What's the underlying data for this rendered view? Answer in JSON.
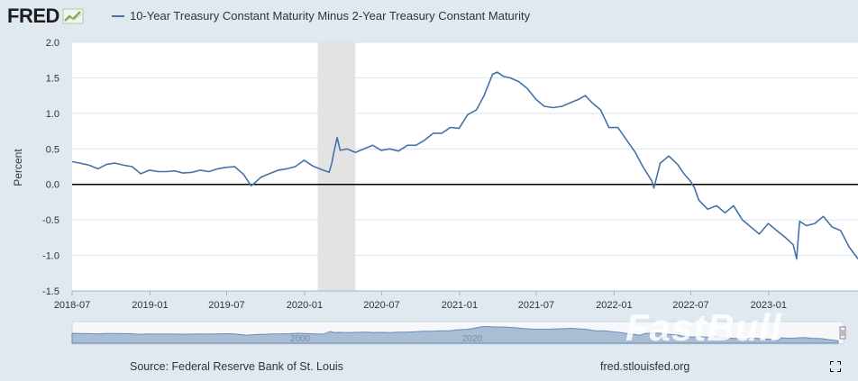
{
  "brand": {
    "name": "FRED",
    "icon": "fred-trend-icon"
  },
  "legend": {
    "label": "10-Year Treasury Constant Maturity Minus 2-Year Treasury Constant Maturity"
  },
  "footer": {
    "source": "Source: Federal Reserve Bank of St. Louis",
    "url": "fred.stlouisfed.org"
  },
  "watermark": "FastBull",
  "navigator": {
    "labels": [
      "2000",
      "2020"
    ]
  },
  "colors": {
    "series": "#4572a7",
    "recession": "#e3e3e3",
    "background": "#e1e9f0",
    "plot": "#ffffff",
    "navigator_fill": "#a9bdd4",
    "zero_line": "#000000"
  },
  "chart_data": {
    "type": "line",
    "ylabel": "Percent",
    "xlabel": "",
    "ylim": [
      -1.5,
      2.0
    ],
    "yticks": [
      "2.0",
      "1.5",
      "1.0",
      "0.5",
      "0.0",
      "-0.5",
      "-1.0",
      "-1.5"
    ],
    "xticks": [
      "2018-07",
      "2019-01",
      "2019-07",
      "2020-01",
      "2020-07",
      "2021-01",
      "2021-07",
      "2022-01",
      "2022-07",
      "2023-01"
    ],
    "xrange": [
      "2018-07-01",
      "2023-07-31"
    ],
    "grid": "horizontal",
    "recession": {
      "start": "2020-02-01",
      "end": "2020-04-30"
    },
    "series": [
      {
        "name": "10-Year Treasury Constant Maturity Minus 2-Year Treasury Constant Maturity",
        "x": [
          "2018-07-01",
          "2018-07-20",
          "2018-08-10",
          "2018-08-31",
          "2018-09-20",
          "2018-10-10",
          "2018-10-31",
          "2018-11-20",
          "2018-12-10",
          "2018-12-31",
          "2019-01-20",
          "2019-02-10",
          "2019-02-28",
          "2019-03-20",
          "2019-04-10",
          "2019-04-30",
          "2019-05-20",
          "2019-06-10",
          "2019-06-30",
          "2019-07-20",
          "2019-08-10",
          "2019-08-20",
          "2019-08-28",
          "2019-09-05",
          "2019-09-20",
          "2019-10-10",
          "2019-10-31",
          "2019-11-20",
          "2019-12-10",
          "2019-12-31",
          "2020-01-20",
          "2020-02-10",
          "2020-02-28",
          "2020-03-05",
          "2020-03-10",
          "2020-03-18",
          "2020-03-25",
          "2020-04-10",
          "2020-04-30",
          "2020-05-20",
          "2020-06-10",
          "2020-06-30",
          "2020-07-20",
          "2020-08-10",
          "2020-08-31",
          "2020-09-20",
          "2020-10-10",
          "2020-10-31",
          "2020-11-20",
          "2020-12-10",
          "2020-12-31",
          "2021-01-20",
          "2021-02-10",
          "2021-02-28",
          "2021-03-10",
          "2021-03-20",
          "2021-03-31",
          "2021-04-15",
          "2021-04-30",
          "2021-05-20",
          "2021-06-10",
          "2021-06-30",
          "2021-07-20",
          "2021-08-10",
          "2021-08-31",
          "2021-09-20",
          "2021-10-10",
          "2021-10-25",
          "2021-11-10",
          "2021-11-30",
          "2021-12-20",
          "2022-01-10",
          "2022-01-31",
          "2022-02-20",
          "2022-03-10",
          "2022-03-31",
          "2022-04-05",
          "2022-04-20",
          "2022-05-10",
          "2022-05-31",
          "2022-06-15",
          "2022-06-30",
          "2022-07-10",
          "2022-07-20",
          "2022-08-10",
          "2022-08-31",
          "2022-09-20",
          "2022-10-10",
          "2022-10-31",
          "2022-11-20",
          "2022-12-10",
          "2022-12-31",
          "2023-01-20",
          "2023-02-10",
          "2023-02-28",
          "2023-03-08",
          "2023-03-15",
          "2023-03-31",
          "2023-04-20",
          "2023-05-10",
          "2023-05-31",
          "2023-06-20",
          "2023-07-10",
          "2023-07-31"
        ],
        "y": [
          0.32,
          0.3,
          0.27,
          0.22,
          0.28,
          0.3,
          0.27,
          0.25,
          0.15,
          0.2,
          0.18,
          0.18,
          0.19,
          0.16,
          0.17,
          0.2,
          0.18,
          0.22,
          0.24,
          0.25,
          0.14,
          0.05,
          -0.02,
          0.02,
          0.1,
          0.15,
          0.2,
          0.22,
          0.25,
          0.34,
          0.26,
          0.21,
          0.17,
          0.29,
          0.45,
          0.66,
          0.48,
          0.5,
          0.45,
          0.5,
          0.55,
          0.48,
          0.5,
          0.47,
          0.55,
          0.55,
          0.62,
          0.72,
          0.72,
          0.8,
          0.79,
          0.98,
          1.05,
          1.25,
          1.4,
          1.55,
          1.58,
          1.52,
          1.5,
          1.45,
          1.35,
          1.2,
          1.1,
          1.08,
          1.1,
          1.15,
          1.2,
          1.25,
          1.15,
          1.05,
          0.8,
          0.8,
          0.62,
          0.45,
          0.25,
          0.05,
          -0.05,
          0.3,
          0.4,
          0.28,
          0.15,
          0.05,
          -0.05,
          -0.22,
          -0.35,
          -0.3,
          -0.4,
          -0.3,
          -0.5,
          -0.6,
          -0.7,
          -0.55,
          -0.65,
          -0.75,
          -0.85,
          -1.05,
          -0.52,
          -0.58,
          -0.55,
          -0.45,
          -0.6,
          -0.65,
          -0.88,
          -1.05
        ]
      }
    ]
  }
}
